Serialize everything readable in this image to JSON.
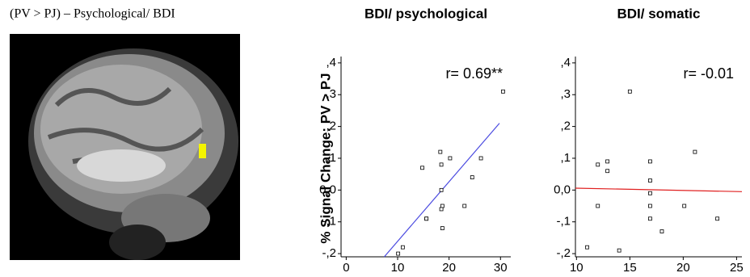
{
  "image_panel": {
    "title": "(PV > PJ) – Psychological/ BDI"
  },
  "y_axis_label": "% Signal Change: PV > PJ",
  "chart_data": [
    {
      "type": "scatter",
      "title": "BDI/ psychological",
      "annotation": "r= 0.69**",
      "x": [
        30.5,
        14.8,
        18.3,
        18.5,
        20.2,
        26.2,
        24.5,
        18.5,
        18.7,
        18.5,
        23.0,
        15.6,
        15.6,
        18.7,
        11.0,
        10.1
      ],
      "y": [
        0.31,
        0.07,
        0.12,
        0.08,
        0.1,
        0.1,
        0.04,
        0.0,
        -0.05,
        -0.06,
        -0.05,
        -0.09,
        -0.09,
        -0.12,
        -0.18,
        -0.2
      ],
      "color": "#000000",
      "fit": {
        "x": [
          7.4,
          29.8
        ],
        "y": [
          -0.21,
          0.21
        ],
        "color": "#4a4ae0"
      },
      "xlim": [
        -1,
        32
      ],
      "ylim": [
        -0.21,
        0.42
      ],
      "xticks": [
        0,
        10,
        20,
        30
      ],
      "yticks": [
        {
          "value": -0.2,
          "label": "-,2"
        },
        {
          "value": -0.1,
          "label": "-,1"
        },
        {
          "value": 0,
          "label": "0,0"
        },
        {
          "value": 0.1,
          "label": ",1"
        },
        {
          "value": 0.2,
          "label": ",2"
        },
        {
          "value": 0.3,
          "label": ",3"
        },
        {
          "value": 0.4,
          "label": ",4"
        }
      ]
    },
    {
      "type": "scatter",
      "title": "BDI/ somatic",
      "annotation": "r= -0.01",
      "x": [
        15.0,
        12.0,
        12.9,
        12.9,
        16.9,
        21.1,
        16.9,
        16.9,
        12.0,
        16.9,
        20.1,
        16.9,
        23.2,
        18.0,
        11.0,
        14.0
      ],
      "y": [
        0.31,
        0.08,
        0.09,
        0.06,
        0.09,
        0.12,
        0.03,
        -0.01,
        -0.05,
        -0.05,
        -0.05,
        -0.09,
        -0.09,
        -0.13,
        -0.18,
        -0.19
      ],
      "color": "#000000",
      "fit": {
        "x": [
          9.9,
          25.5
        ],
        "y": [
          0.006,
          -0.005
        ],
        "color": "#e02020"
      },
      "xlim": [
        9.9,
        25.5
      ],
      "ylim": [
        -0.21,
        0.42
      ],
      "xticks": [
        10,
        15,
        20,
        25
      ],
      "yticks": [
        {
          "value": -0.2,
          "label": "-,2"
        },
        {
          "value": -0.1,
          "label": "-,1"
        },
        {
          "value": 0,
          "label": "0,0"
        },
        {
          "value": 0.1,
          "label": ",1"
        },
        {
          "value": 0.2,
          "label": ",2"
        },
        {
          "value": 0.3,
          "label": ",3"
        },
        {
          "value": 0.4,
          "label": ",4"
        }
      ]
    }
  ]
}
